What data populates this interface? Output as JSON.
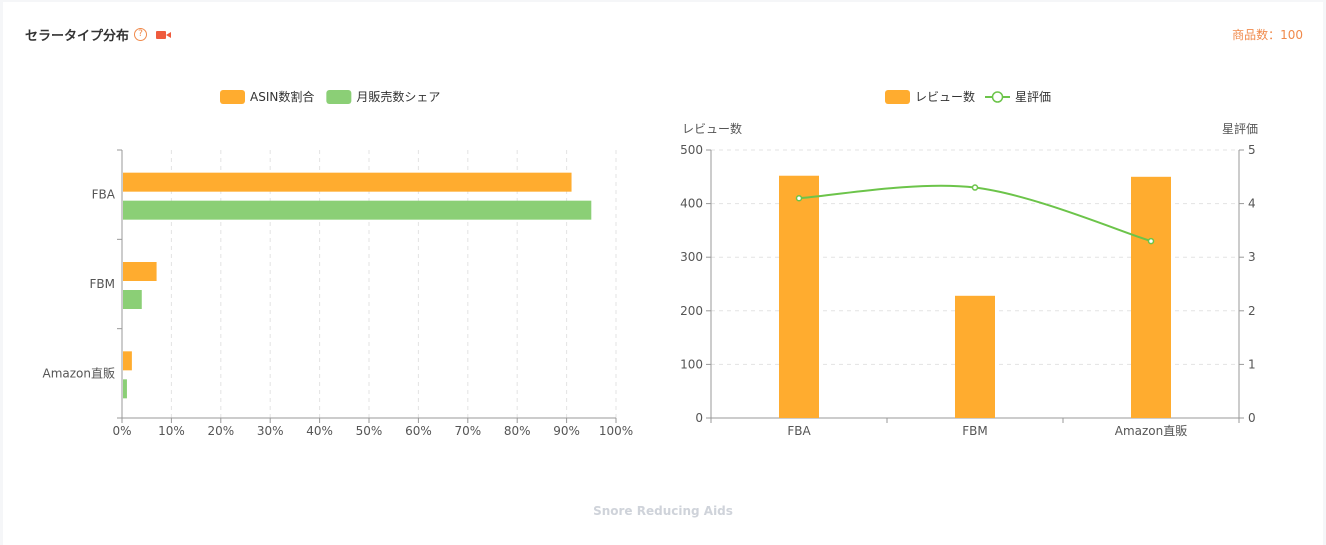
{
  "header": {
    "title": "セラータイプ分布",
    "help_icon": "question-circle-icon",
    "video_icon": "video-camera-icon",
    "count_text": "商品数：100"
  },
  "footer": {
    "category_label": "Snore Reducing Aids"
  },
  "colors": {
    "orange": "#FFAC2F",
    "green": "#8BCF76",
    "line": "#6CC44A",
    "accent": "#F08A4B"
  },
  "chart_data": [
    {
      "type": "bar",
      "orientation": "horizontal",
      "categories": [
        "FBA",
        "FBM",
        "Amazon直販"
      ],
      "series": [
        {
          "name": "ASIN数割合",
          "values": [
            91,
            7,
            2
          ]
        },
        {
          "name": "月販売数シェア",
          "values": [
            95,
            4,
            1
          ]
        }
      ],
      "xlim": [
        0,
        100
      ],
      "x_ticks": [
        "0%",
        "10%",
        "20%",
        "30%",
        "40%",
        "50%",
        "60%",
        "70%",
        "80%",
        "90%",
        "100%"
      ],
      "grid": "vertical-dashed",
      "legend": "top"
    },
    {
      "type": "bar+line",
      "categories": [
        "FBA",
        "FBM",
        "Amazon直販"
      ],
      "series": [
        {
          "name": "レビュー数",
          "type": "bar",
          "axis": "left",
          "values": [
            452,
            228,
            450
          ]
        },
        {
          "name": "星評価",
          "type": "line",
          "axis": "right",
          "values": [
            4.1,
            4.3,
            3.3
          ]
        }
      ],
      "ylabel_left": "レビュー数",
      "ylabel_right": "星評価",
      "ylim_left": [
        0,
        500
      ],
      "ylim_right": [
        0,
        5
      ],
      "y_ticks_left": [
        "0",
        "100",
        "200",
        "300",
        "400",
        "500"
      ],
      "y_ticks_right": [
        "0",
        "1",
        "2",
        "3",
        "4",
        "5"
      ],
      "grid": "horizontal-dashed",
      "legend": "top"
    }
  ]
}
